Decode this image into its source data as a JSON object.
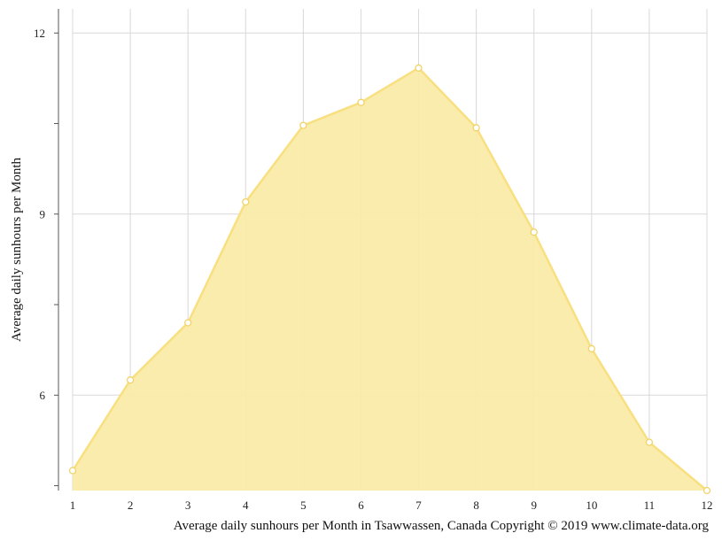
{
  "chart_data": {
    "type": "area",
    "x": [
      1,
      2,
      3,
      4,
      5,
      6,
      7,
      8,
      9,
      10,
      11,
      12
    ],
    "series": [
      {
        "values": [
          4.75,
          6.25,
          7.2,
          9.2,
          10.47,
          10.85,
          11.42,
          10.43,
          8.7,
          6.77,
          5.22,
          4.42
        ]
      }
    ],
    "ylabel": "Average daily sunhours per Month",
    "caption": "Average daily sunhours per Month in Tsawwassen, Canada Copyright © 2019 www.climate-data.org",
    "y_ticks": [
      "6",
      "9",
      "12"
    ],
    "x_ticks": [
      "1",
      "2",
      "3",
      "4",
      "5",
      "6",
      "7",
      "8",
      "9",
      "10",
      "11",
      "12"
    ],
    "xlim": [
      1,
      12
    ],
    "ylim": [
      4.42,
      12.4
    ],
    "grid": true,
    "colors": {
      "fill": "#faeba8",
      "line": "#f8df80",
      "grid": "#d8d8d8",
      "axis": "#555555"
    }
  }
}
